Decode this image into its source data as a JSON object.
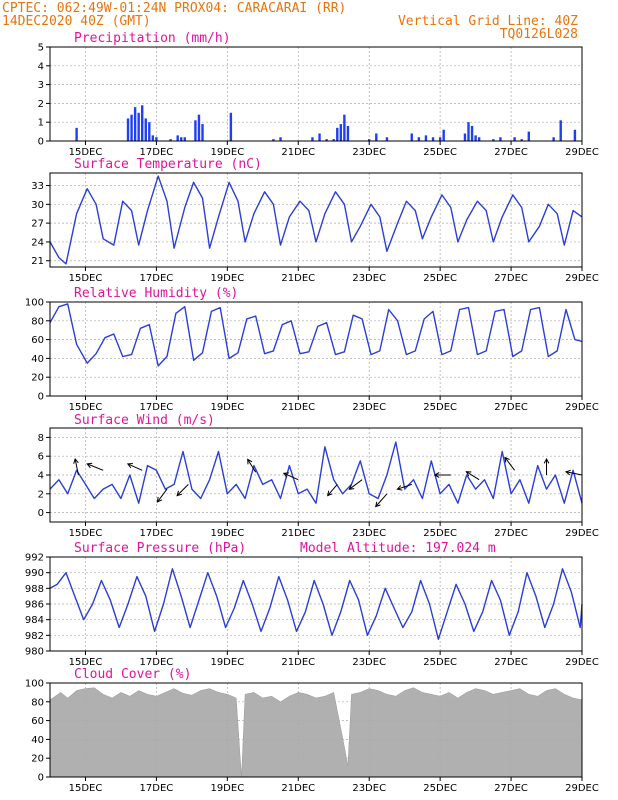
{
  "header": {
    "line1": "CPTEC:   062:49W-01:24N   PROX04: CARACARAI (RR)",
    "date": "14DEC2020 40Z (GMT)",
    "grid_line": "Vertical Grid Line: 40Z",
    "code": "TQ0126L028"
  },
  "x_axis": {
    "start_day": 14,
    "end_day": 29,
    "ticks": [
      {
        "day": 15,
        "label": "15DEC"
      },
      {
        "day": 17,
        "label": "17DEC"
      },
      {
        "day": 19,
        "label": "19DEC"
      },
      {
        "day": 21,
        "label": "21DEC"
      },
      {
        "day": 23,
        "label": "23DEC"
      },
      {
        "day": 25,
        "label": "25DEC"
      },
      {
        "day": 27,
        "label": "27DEC"
      },
      {
        "day": 29,
        "label": "29DEC"
      }
    ]
  },
  "colors": {
    "line": "#2a3fd6",
    "bar": "#1f3ff5",
    "cloud": "#b0b0b0",
    "header": "#e8740c",
    "title": "#e0149b",
    "grid": "#aaaaaa"
  },
  "chart_data": [
    {
      "id": "precip",
      "type": "bar",
      "title": "Precipitation  (mm/h)",
      "ylim": [
        0,
        5
      ],
      "yticks": [
        0,
        1,
        2,
        3,
        4,
        5
      ],
      "grid": true,
      "x": [
        14.75,
        16.2,
        16.3,
        16.4,
        16.5,
        16.6,
        16.7,
        16.8,
        16.9,
        17.0,
        17.4,
        17.6,
        17.7,
        17.8,
        18.1,
        18.2,
        18.3,
        19.1,
        20.3,
        20.5,
        21.4,
        21.6,
        21.8,
        22.0,
        22.1,
        22.2,
        22.3,
        22.4,
        23.0,
        23.2,
        23.5,
        24.2,
        24.4,
        24.6,
        24.8,
        25.0,
        25.1,
        25.7,
        25.8,
        25.9,
        26.0,
        26.1,
        26.5,
        26.7,
        27.1,
        27.3,
        27.5,
        28.2,
        28.4,
        28.8
      ],
      "values": [
        0.7,
        1.2,
        1.4,
        1.8,
        1.5,
        1.9,
        1.2,
        1.0,
        0.3,
        0.2,
        0.1,
        0.3,
        0.2,
        0.2,
        1.1,
        1.4,
        0.9,
        1.5,
        0.1,
        0.2,
        0.2,
        0.4,
        0.1,
        0.1,
        0.7,
        0.9,
        1.4,
        0.8,
        0.1,
        0.4,
        0.2,
        0.4,
        0.2,
        0.3,
        0.2,
        0.2,
        0.6,
        0.4,
        1.0,
        0.8,
        0.3,
        0.2,
        0.1,
        0.2,
        0.2,
        0.1,
        0.5,
        0.2,
        1.1,
        0.6
      ]
    },
    {
      "id": "temp",
      "type": "line",
      "title": "Surface Temperature (nC)",
      "ylim": [
        20,
        35
      ],
      "yticks": [
        21,
        24,
        27,
        30,
        33
      ],
      "grid": true,
      "x": [
        14.0,
        14.25,
        14.45,
        14.75,
        15.05,
        15.3,
        15.5,
        15.8,
        16.05,
        16.3,
        16.5,
        16.75,
        17.05,
        17.3,
        17.5,
        17.8,
        18.05,
        18.3,
        18.5,
        18.75,
        19.05,
        19.3,
        19.5,
        19.75,
        20.05,
        20.3,
        20.5,
        20.75,
        21.05,
        21.3,
        21.5,
        21.75,
        22.05,
        22.3,
        22.5,
        22.75,
        23.05,
        23.3,
        23.5,
        23.8,
        24.05,
        24.3,
        24.5,
        24.75,
        25.05,
        25.3,
        25.5,
        25.75,
        26.05,
        26.3,
        26.5,
        26.75,
        27.05,
        27.3,
        27.5,
        27.8,
        28.05,
        28.3,
        28.5,
        28.75,
        29.0
      ],
      "values": [
        24.0,
        21.5,
        20.5,
        28.5,
        32.5,
        30.0,
        24.5,
        23.5,
        30.5,
        29.0,
        23.5,
        29.0,
        34.5,
        30.5,
        23.0,
        29.5,
        33.5,
        31.0,
        23.0,
        28.0,
        33.5,
        30.5,
        24.0,
        28.5,
        32.0,
        30.0,
        23.5,
        28.0,
        30.5,
        29.0,
        24.0,
        28.5,
        32.0,
        30.0,
        24.0,
        26.5,
        30.0,
        28.0,
        22.5,
        27.0,
        30.5,
        29.0,
        24.5,
        28.0,
        31.5,
        29.5,
        24.0,
        27.5,
        30.5,
        29.0,
        24.0,
        28.0,
        31.5,
        29.5,
        24.0,
        26.5,
        30.0,
        28.5,
        23.5,
        29.0,
        28.0
      ]
    },
    {
      "id": "rh",
      "type": "line",
      "title": "Relative Humidity (%)",
      "ylim": [
        0,
        100
      ],
      "yticks": [
        0,
        20,
        40,
        60,
        80,
        100
      ],
      "grid": true,
      "x": [
        14.0,
        14.25,
        14.5,
        14.75,
        15.05,
        15.3,
        15.55,
        15.8,
        16.05,
        16.3,
        16.55,
        16.8,
        17.05,
        17.3,
        17.55,
        17.8,
        18.05,
        18.3,
        18.55,
        18.8,
        19.05,
        19.3,
        19.55,
        19.8,
        20.05,
        20.3,
        20.55,
        20.8,
        21.05,
        21.3,
        21.55,
        21.8,
        22.05,
        22.3,
        22.55,
        22.8,
        23.05,
        23.3,
        23.55,
        23.8,
        24.05,
        24.3,
        24.55,
        24.8,
        25.05,
        25.3,
        25.55,
        25.8,
        26.05,
        26.3,
        26.55,
        26.8,
        27.05,
        27.3,
        27.55,
        27.8,
        28.05,
        28.3,
        28.55,
        28.8,
        29.0
      ],
      "values": [
        78,
        95,
        98,
        55,
        35,
        45,
        62,
        66,
        42,
        44,
        72,
        76,
        32,
        42,
        88,
        95,
        38,
        46,
        90,
        94,
        40,
        46,
        82,
        85,
        45,
        48,
        76,
        80,
        45,
        47,
        74,
        78,
        44,
        47,
        86,
        82,
        44,
        48,
        92,
        80,
        44,
        48,
        82,
        90,
        44,
        48,
        92,
        94,
        44,
        48,
        90,
        92,
        42,
        48,
        92,
        94,
        42,
        48,
        92,
        60,
        58
      ]
    },
    {
      "id": "wind",
      "type": "line",
      "title": "Surface Wind (m/s)",
      "ylim": [
        -1,
        9
      ],
      "yticks": [
        0,
        2,
        4,
        6,
        8
      ],
      "grid": true,
      "x": [
        14.0,
        14.25,
        14.5,
        14.75,
        15.0,
        15.25,
        15.5,
        15.75,
        16.0,
        16.25,
        16.5,
        16.75,
        17.0,
        17.25,
        17.5,
        17.75,
        18.0,
        18.25,
        18.5,
        18.75,
        19.0,
        19.25,
        19.5,
        19.75,
        20.0,
        20.25,
        20.5,
        20.75,
        21.0,
        21.25,
        21.5,
        21.75,
        22.0,
        22.25,
        22.5,
        22.75,
        23.0,
        23.25,
        23.5,
        23.75,
        24.0,
        24.25,
        24.5,
        24.75,
        25.0,
        25.25,
        25.5,
        25.75,
        26.0,
        26.25,
        26.5,
        26.75,
        27.0,
        27.25,
        27.5,
        27.75,
        28.0,
        28.25,
        28.5,
        28.75,
        29.0
      ],
      "values": [
        2.5,
        3.5,
        2.0,
        4.5,
        3.0,
        1.5,
        2.5,
        3.0,
        1.5,
        4.0,
        1.0,
        5.0,
        4.5,
        2.5,
        3.0,
        6.5,
        2.5,
        1.5,
        3.5,
        6.5,
        2.0,
        3.0,
        1.5,
        5.0,
        3.0,
        3.5,
        1.5,
        5.0,
        2.0,
        2.5,
        1.0,
        7.0,
        3.5,
        2.0,
        3.0,
        5.5,
        2.0,
        1.5,
        4.0,
        7.5,
        2.5,
        3.5,
        1.5,
        5.5,
        2.0,
        3.0,
        1.0,
        4.0,
        2.5,
        3.5,
        1.5,
        6.5,
        2.0,
        3.5,
        1.0,
        5.0,
        2.5,
        4.0,
        1.0,
        4.5,
        1.0
      ],
      "arrows": [
        {
          "x": 14.8,
          "y": 4.0,
          "u": -0.2,
          "v": 1.0
        },
        {
          "x": 15.5,
          "y": 4.5,
          "u": -1.0,
          "v": 0.4
        },
        {
          "x": 16.6,
          "y": 4.5,
          "u": -0.9,
          "v": 0.4
        },
        {
          "x": 17.3,
          "y": 2.5,
          "u": -0.6,
          "v": -0.8
        },
        {
          "x": 17.9,
          "y": 3.0,
          "u": -0.7,
          "v": -0.7
        },
        {
          "x": 19.8,
          "y": 4.3,
          "u": -0.5,
          "v": 0.8
        },
        {
          "x": 21.0,
          "y": 3.5,
          "u": -0.9,
          "v": 0.4
        },
        {
          "x": 22.1,
          "y": 3.0,
          "u": -0.6,
          "v": -0.7
        },
        {
          "x": 22.8,
          "y": 3.5,
          "u": -0.8,
          "v": -0.6
        },
        {
          "x": 23.5,
          "y": 2.0,
          "u": -0.7,
          "v": -0.8
        },
        {
          "x": 24.2,
          "y": 3.0,
          "u": -0.9,
          "v": -0.3
        },
        {
          "x": 25.3,
          "y": 4.0,
          "u": -1.0,
          "v": 0.0
        },
        {
          "x": 26.1,
          "y": 3.5,
          "u": -0.8,
          "v": 0.5
        },
        {
          "x": 27.1,
          "y": 4.5,
          "u": -0.6,
          "v": 0.8
        },
        {
          "x": 28.0,
          "y": 4.0,
          "u": 0.0,
          "v": 1.0
        },
        {
          "x": 29.0,
          "y": 4.0,
          "u": -1.0,
          "v": 0.2
        }
      ]
    },
    {
      "id": "press",
      "type": "line",
      "title": "Surface Pressure (hPa)",
      "annotation": "Model Altitude: 197.024 m",
      "ylim": [
        980,
        992
      ],
      "yticks": [
        980,
        982,
        984,
        986,
        988,
        990,
        992
      ],
      "grid": true,
      "x": [
        14.0,
        14.2,
        14.45,
        14.7,
        14.95,
        15.2,
        15.45,
        15.7,
        15.95,
        16.2,
        16.45,
        16.7,
        16.95,
        17.2,
        17.45,
        17.7,
        17.95,
        18.2,
        18.45,
        18.7,
        18.95,
        19.2,
        19.45,
        19.7,
        19.95,
        20.2,
        20.45,
        20.7,
        20.95,
        21.2,
        21.45,
        21.7,
        21.95,
        22.2,
        22.45,
        22.7,
        22.95,
        23.2,
        23.45,
        23.7,
        23.95,
        24.2,
        24.45,
        24.7,
        24.95,
        25.2,
        25.45,
        25.7,
        25.95,
        26.2,
        26.45,
        26.7,
        26.95,
        27.2,
        27.45,
        27.7,
        27.95,
        28.2,
        28.45,
        28.7,
        28.95,
        29.0
      ],
      "values": [
        988.0,
        988.5,
        990.0,
        987.0,
        984.0,
        986.0,
        989.0,
        986.5,
        983.0,
        986.0,
        989.5,
        987.0,
        982.5,
        986.0,
        990.5,
        987.0,
        983.0,
        986.5,
        990.0,
        987.0,
        983.0,
        985.5,
        989.0,
        986.0,
        982.5,
        985.5,
        989.5,
        986.5,
        982.5,
        985.0,
        989.0,
        986.0,
        982.0,
        985.0,
        989.0,
        986.5,
        982.0,
        984.5,
        988.0,
        985.5,
        983.0,
        985.0,
        989.0,
        986.0,
        981.5,
        985.0,
        988.5,
        986.0,
        982.5,
        985.0,
        989.0,
        986.5,
        982.0,
        985.0,
        990.0,
        987.0,
        983.0,
        986.0,
        990.5,
        987.5,
        983.0,
        986.0
      ]
    },
    {
      "id": "cloud",
      "type": "area",
      "title": "Cloud Cover (%)",
      "ylim": [
        0,
        100
      ],
      "yticks": [
        0,
        20,
        40,
        60,
        80,
        100
      ],
      "grid": true,
      "x": [
        14.0,
        14.3,
        14.5,
        14.75,
        15.0,
        15.25,
        15.5,
        15.75,
        16.0,
        16.25,
        16.5,
        16.75,
        17.0,
        17.25,
        17.5,
        17.75,
        18.0,
        18.25,
        18.5,
        18.75,
        19.0,
        19.25,
        19.4,
        19.5,
        19.75,
        20.0,
        20.25,
        20.5,
        20.75,
        21.0,
        21.25,
        21.5,
        21.75,
        22.0,
        22.25,
        22.4,
        22.5,
        22.75,
        23.0,
        23.25,
        23.5,
        23.75,
        24.0,
        24.25,
        24.5,
        24.75,
        25.0,
        25.25,
        25.5,
        25.75,
        26.0,
        26.25,
        26.5,
        26.75,
        27.0,
        27.25,
        27.5,
        27.75,
        28.0,
        28.25,
        28.5,
        28.75,
        29.0
      ],
      "values": [
        82,
        90,
        84,
        92,
        94,
        95,
        88,
        84,
        90,
        86,
        92,
        88,
        86,
        90,
        94,
        89,
        87,
        92,
        94,
        90,
        88,
        84,
        0,
        88,
        90,
        84,
        86,
        80,
        86,
        90,
        88,
        84,
        86,
        90,
        42,
        12,
        88,
        90,
        94,
        92,
        88,
        86,
        92,
        95,
        90,
        88,
        86,
        90,
        84,
        90,
        94,
        92,
        88,
        90,
        92,
        94,
        88,
        86,
        92,
        94,
        88,
        84,
        82
      ]
    }
  ]
}
